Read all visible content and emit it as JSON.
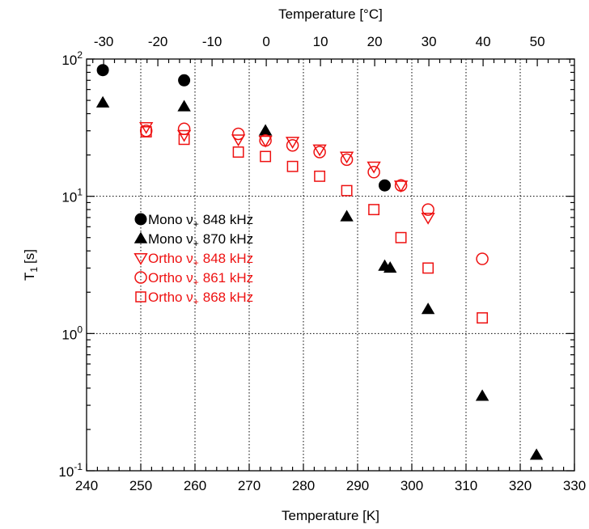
{
  "chart_data": {
    "type": "scatter",
    "title": "",
    "xlabel": "Temperature [K]",
    "ylabel": "T",
    "ylabel_sub": "1",
    "ylabel_unit": "[s]",
    "x2label": "Temperature [°C]",
    "xlim": [
      240,
      330
    ],
    "ylim": [
      0.1,
      100
    ],
    "yscale": "log",
    "x2lim": [
      -33.15,
      56.85
    ],
    "grid": true,
    "legend_placement": "center-left",
    "x_ticks": [
      240,
      250,
      260,
      270,
      280,
      290,
      300,
      310,
      320,
      330
    ],
    "x2_ticks": [
      -30,
      -20,
      -10,
      0,
      10,
      20,
      30,
      40,
      50
    ],
    "y_ticks": [
      {
        "value": 0.1,
        "base": "10",
        "exp": "-1"
      },
      {
        "value": 1,
        "base": "10",
        "exp": "0"
      },
      {
        "value": 10,
        "base": "10",
        "exp": "1"
      },
      {
        "value": 100,
        "base": "10",
        "exp": "2"
      }
    ],
    "series": [
      {
        "name": "Mono",
        "nu": "ν",
        "nu_sub": "+",
        "freq": "848 kHz",
        "marker": "circle",
        "filled": true,
        "color": "#000000",
        "points": [
          [
            243,
            83
          ],
          [
            258,
            70
          ],
          [
            295,
            12
          ]
        ]
      },
      {
        "name": "Mono",
        "nu": "ν",
        "nu_sub": "+",
        "freq": "870 kHz",
        "marker": "triangle-up",
        "filled": true,
        "color": "#000000",
        "points": [
          [
            243,
            48
          ],
          [
            258,
            45
          ],
          [
            273,
            30
          ],
          [
            288,
            7.1
          ],
          [
            295,
            3.1
          ],
          [
            296,
            3.0
          ],
          [
            303,
            1.5
          ],
          [
            313,
            0.35
          ],
          [
            323,
            0.13
          ]
        ]
      },
      {
        "name": "Ortho",
        "nu": "ν",
        "nu_sub": "+",
        "freq": "848 kHz",
        "marker": "triangle-down",
        "filled": false,
        "color": "#ee1111",
        "points": [
          [
            251,
            32
          ],
          [
            258,
            28
          ],
          [
            268,
            26
          ],
          [
            273,
            25.5
          ],
          [
            278,
            25
          ],
          [
            283,
            22
          ],
          [
            288,
            19.5
          ],
          [
            293,
            16.5
          ],
          [
            298,
            12
          ],
          [
            303,
            7
          ]
        ]
      },
      {
        "name": "Ortho",
        "nu": "ν",
        "nu_sub": "+",
        "freq": "861 kHz",
        "marker": "circle",
        "filled": false,
        "color": "#ee1111",
        "points": [
          [
            251,
            30
          ],
          [
            258,
            31
          ],
          [
            268,
            28.5
          ],
          [
            273,
            25.5
          ],
          [
            278,
            23.5
          ],
          [
            283,
            21
          ],
          [
            288,
            18.5
          ],
          [
            293,
            15
          ],
          [
            298,
            12
          ],
          [
            303,
            8
          ],
          [
            313,
            3.5
          ]
        ]
      },
      {
        "name": "Ortho",
        "nu": "ν",
        "nu_sub": "+",
        "freq": "868 kHz",
        "marker": "square",
        "filled": false,
        "color": "#ee1111",
        "points": [
          [
            251,
            29.5
          ],
          [
            258,
            26
          ],
          [
            268,
            21
          ],
          [
            273,
            19.5
          ],
          [
            278,
            16.5
          ],
          [
            283,
            14
          ],
          [
            288,
            11
          ],
          [
            293,
            8
          ],
          [
            298,
            5
          ],
          [
            303,
            3
          ],
          [
            313,
            1.3
          ]
        ]
      }
    ]
  }
}
